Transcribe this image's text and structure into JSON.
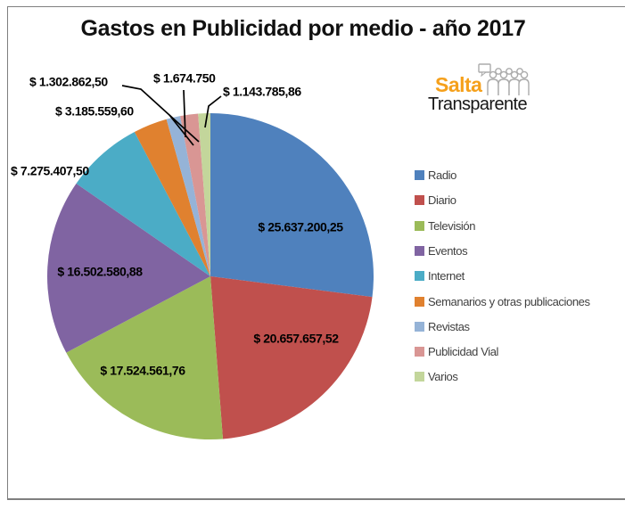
{
  "title": "Gastos en Publicidad por medio - año 2017",
  "logo": {
    "brand_line1": "Salta",
    "brand_line2": "Transparente",
    "brand_color": "#F5A01B",
    "crowd_icon_color": "#ABABAB"
  },
  "chart_data": {
    "type": "pie",
    "title": "Gastos en Publicidad por medio - año 2017",
    "legend_position": "right",
    "currency": "$",
    "slices": [
      {
        "label": "Radio",
        "value": 25637200.25,
        "display": "$ 25.637.200,25",
        "color": "#4F81BD"
      },
      {
        "label": "Diario",
        "value": 20657657.52,
        "display": "$ 20.657.657,52",
        "color": "#C0504D"
      },
      {
        "label": "Televisión",
        "value": 17524561.76,
        "display": "$ 17.524.561,76",
        "color": "#9BBB59"
      },
      {
        "label": "Eventos",
        "value": 16502580.88,
        "display": "$ 16.502.580,88",
        "color": "#8064A2"
      },
      {
        "label": "Internet",
        "value": 7275407.5,
        "display": "$ 7.275.407,50",
        "color": "#4BACC6"
      },
      {
        "label": "Semanarios y otras publicaciones",
        "value": 3185559.6,
        "display": "$ 3.185.559,60",
        "color": "#E0812F"
      },
      {
        "label": "Revistas",
        "value": 1302862.5,
        "display": "$ 1.302.862,50",
        "color": "#95B3D7"
      },
      {
        "label": "Publicidad Vial",
        "value": 1674750,
        "display": "$ 1.674.750",
        "color": "#D99694"
      },
      {
        "label": "Varios",
        "value": 1143785.86,
        "display": "$ 1.143.785,86",
        "color": "#C3D69B"
      }
    ]
  }
}
